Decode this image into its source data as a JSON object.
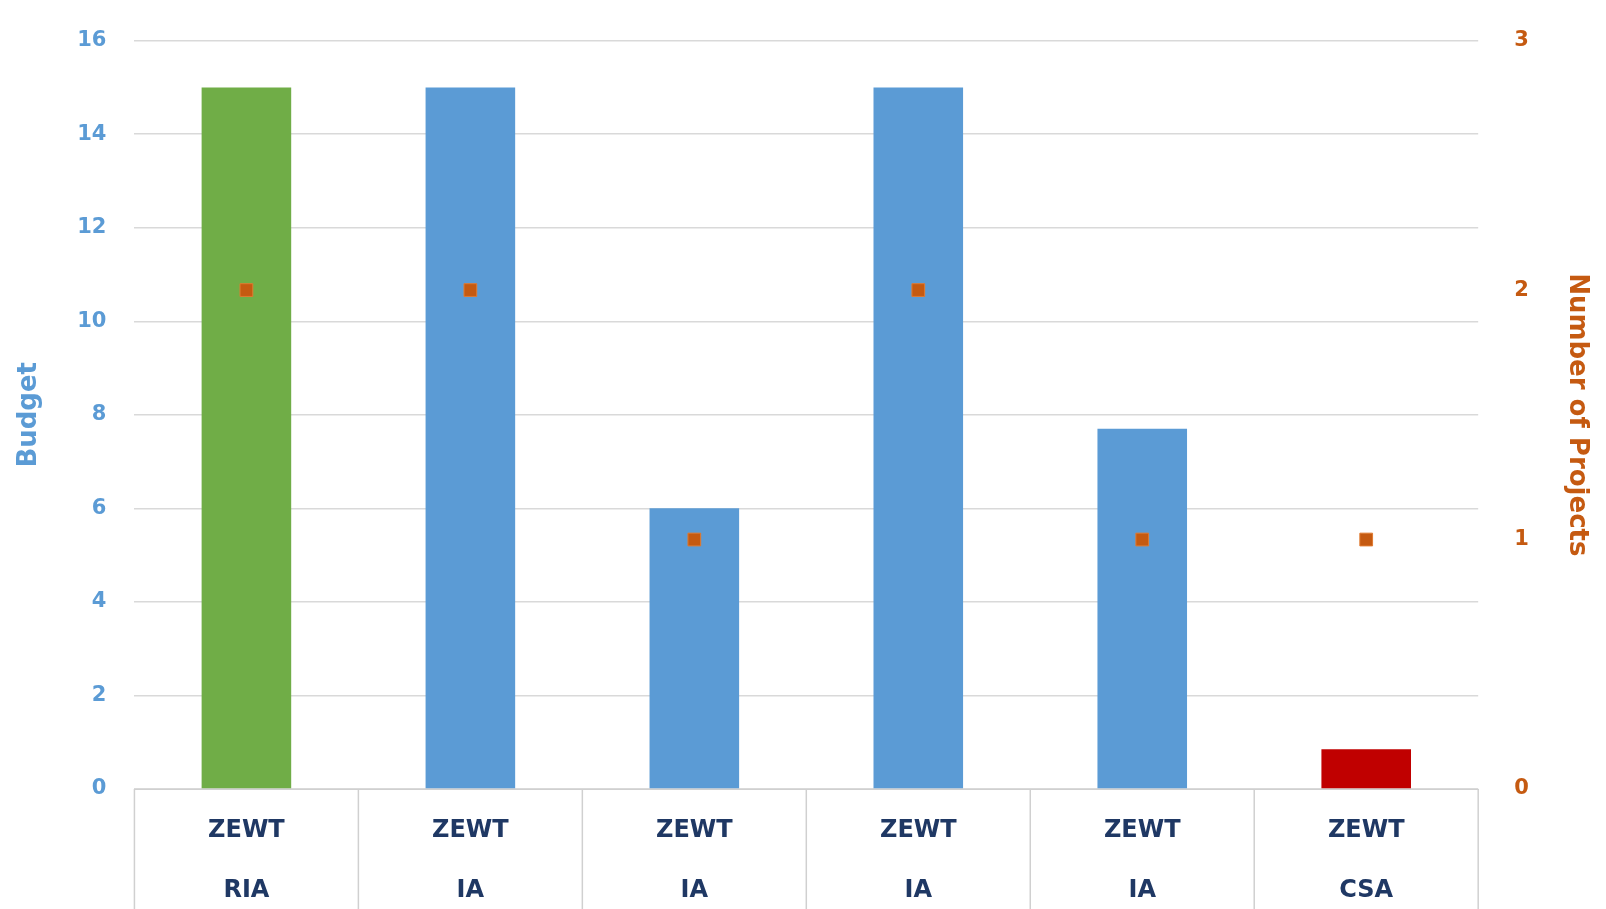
{
  "chart_data": {
    "type": "bar",
    "ylabel": "Budget",
    "y2label": "Number of Projects",
    "categories": [
      "ZEWT\nRIA",
      "ZEWT\nIA",
      "ZEWT\nIA",
      "ZEWT\nIA",
      "ZEWT\nIA",
      "ZEWT\nCSA"
    ],
    "series": [
      {
        "colors": [
          "#70ad47",
          "#5b9bd5",
          "#5b9bd5",
          "#5b9bd5",
          "#5b9bd5",
          "#c00000"
        ],
        "values": [
          15,
          15,
          6,
          15,
          7.7,
          0.85
        ]
      },
      {
        "type": "scatter",
        "axis": "y2",
        "color": "#c55a11",
        "marker": "square",
        "values": [
          2,
          2,
          1,
          2,
          1,
          1
        ]
      }
    ],
    "ylim": [
      0,
      16
    ],
    "yticks": [
      0,
      2,
      4,
      6,
      8,
      10,
      12,
      14,
      16
    ],
    "y2lim": [
      0,
      3
    ],
    "y2ticks": [
      0,
      1,
      2,
      3
    ],
    "grid": "y",
    "legend": false
  }
}
